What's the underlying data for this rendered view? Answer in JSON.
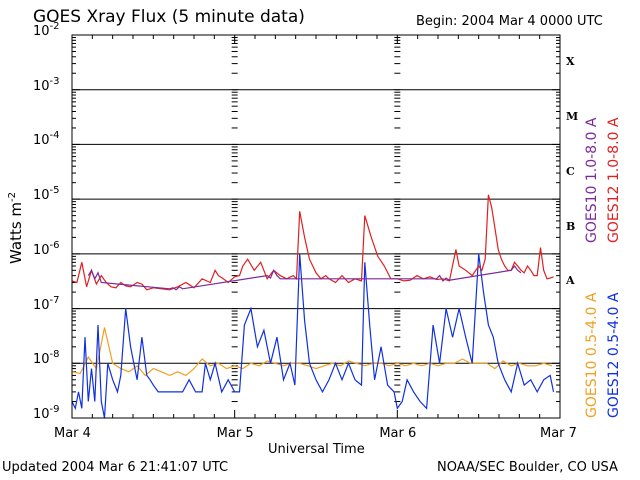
{
  "title": "GOES Xray Flux (5 minute data)",
  "begin": "Begin:  2004 Mar 4 0000 UTC",
  "updated": "Updated 2004 Mar  6 21:41:07 UTC",
  "credit": "NOAA/SEC Boulder, CO USA",
  "colors": {
    "goes10_long": "#7a2a9a",
    "goes12_long": "#e02020",
    "goes10_short": "#f0a020",
    "goes12_short": "#1030e0"
  },
  "legend": [
    {
      "label": "GOES10 1.0-8.0 A",
      "color": "#7a2a9a"
    },
    {
      "label": "GOES12 1.0-8.0 A",
      "color": "#e02020"
    },
    {
      "label": "GOES10 0.5-4.0 A",
      "color": "#f0a020"
    },
    {
      "label": "GOES12 0.5-4.0 A",
      "color": "#1030e0"
    }
  ],
  "chart_data": {
    "type": "line",
    "title": "GOES Xray Flux (5 minute data)",
    "xlabel": "Universal Time",
    "ylabel": "Watts m",
    "ylabel_sup": "-2",
    "yscale": "log",
    "ylim": [
      1e-09,
      0.01
    ],
    "xlim": [
      "2004-03-04",
      "2004-03-07"
    ],
    "grid": true,
    "y_ticks": [
      {
        "base": "10",
        "exp": "-9"
      },
      {
        "base": "10",
        "exp": "-8"
      },
      {
        "base": "10",
        "exp": "-7"
      },
      {
        "base": "10",
        "exp": "-6"
      },
      {
        "base": "10",
        "exp": "-5"
      },
      {
        "base": "10",
        "exp": "-4"
      },
      {
        "base": "10",
        "exp": "-3"
      },
      {
        "base": "10",
        "exp": "-2"
      }
    ],
    "x_ticks": [
      "Mar 4",
      "Mar 5",
      "Mar 6",
      "Mar 7"
    ],
    "flare_classes": [
      {
        "label": "A",
        "value": 1e-07
      },
      {
        "label": "B",
        "value": 1e-06
      },
      {
        "label": "C",
        "value": 1e-05
      },
      {
        "label": "M",
        "value": 0.0001
      },
      {
        "label": "X",
        "value": 0.001
      }
    ],
    "series": [
      {
        "name": "GOES12 1.0-8.0 A",
        "color": "#e02020",
        "x": [
          0,
          0.03,
          0.06,
          0.09,
          0.12,
          0.15,
          0.18,
          0.21,
          0.24,
          0.27,
          0.3,
          0.33,
          0.36,
          0.4,
          0.43,
          0.46,
          0.5,
          0.55,
          0.6,
          0.65,
          0.7,
          0.75,
          0.8,
          0.85,
          0.88,
          0.9,
          0.93,
          0.96,
          1.0,
          1.03,
          1.05,
          1.08,
          1.12,
          1.16,
          1.2,
          1.24,
          1.28,
          1.32,
          1.36,
          1.38,
          1.4,
          1.43,
          1.46,
          1.5,
          1.53,
          1.56,
          1.58,
          1.62,
          1.66,
          1.7,
          1.74,
          1.78,
          1.8,
          1.84,
          1.88,
          1.92,
          1.96,
          2.0,
          2.04,
          2.08,
          2.12,
          2.16,
          2.2,
          2.24,
          2.28,
          2.32,
          2.36,
          2.38,
          2.42,
          2.46,
          2.5,
          2.52,
          2.54,
          2.56,
          2.58,
          2.6,
          2.62,
          2.64,
          2.66,
          2.68,
          2.7,
          2.72,
          2.74,
          2.76,
          2.78,
          2.8,
          2.82,
          2.84,
          2.86,
          2.88,
          2.9,
          2.92,
          2.94,
          2.96
        ],
        "y": [
          3.2e-07,
          3e-07,
          7e-07,
          2.5e-07,
          5e-07,
          2.8e-07,
          4e-07,
          3e-07,
          2.5e-07,
          2.4e-07,
          3e-07,
          2.6e-07,
          2.5e-07,
          3e-07,
          2.8e-07,
          2.2e-07,
          2.4e-07,
          2.3e-07,
          2.2e-07,
          2.5e-07,
          3e-07,
          2.4e-07,
          3.5e-07,
          3e-07,
          5e-07,
          4e-07,
          3.5e-07,
          3e-07,
          3.8e-07,
          4e-07,
          6e-07,
          8e-07,
          5e-07,
          7e-07,
          3.5e-07,
          5e-07,
          4e-07,
          3.5e-07,
          4e-07,
          3.5e-07,
          6e-06,
          2e-06,
          8e-07,
          4.5e-07,
          3.5e-07,
          4e-07,
          3.5e-07,
          3e-07,
          4e-07,
          3e-07,
          3.5e-07,
          3.2e-07,
          5e-06,
          2e-06,
          9e-07,
          6e-07,
          3.5e-07,
          3.5e-07,
          3.2e-07,
          3.3e-07,
          4e-07,
          3.5e-07,
          3.8e-07,
          3.4e-07,
          3.5e-07,
          3.2e-07,
          1.2e-06,
          6e-07,
          5e-07,
          4e-07,
          6e-07,
          5e-07,
          8e-07,
          1.2e-05,
          7e-06,
          3e-06,
          1.2e-06,
          8e-07,
          6e-07,
          5e-07,
          5e-07,
          7e-07,
          6e-07,
          5e-07,
          4.5e-07,
          6e-07,
          5e-07,
          4e-07,
          4e-07,
          1.3e-06,
          5e-07,
          3.5e-07,
          3.6e-07,
          3.8e-07
        ]
      },
      {
        "name": "GOES10 1.0-8.0 A",
        "color": "#7a2a9a",
        "x": [
          0.1,
          0.12,
          0.14,
          0.16,
          0.18,
          0.6,
          0.62,
          0.64,
          0.66,
          0.68,
          1.2,
          1.22,
          1.24,
          1.26,
          1.28,
          2.24,
          2.26,
          2.28,
          2.3,
          2.32,
          2.7,
          2.72,
          2.74,
          2.76
        ],
        "y": [
          4e-07,
          5e-07,
          3.5e-07,
          4.5e-07,
          3e-07,
          2.3e-07,
          2.4e-07,
          2.2e-07,
          2.5e-07,
          2.3e-07,
          4e-07,
          3.6e-07,
          5e-07,
          4e-07,
          3.5e-07,
          3.5e-07,
          4e-07,
          3.2e-07,
          3.6e-07,
          3.3e-07,
          5e-07,
          6e-07,
          5e-07,
          4.5e-07
        ]
      },
      {
        "name": "GOES10 0.5-4.0 A",
        "color": "#f0a020",
        "x": [
          0,
          0.05,
          0.1,
          0.15,
          0.2,
          0.25,
          0.3,
          0.35,
          0.4,
          0.45,
          0.5,
          0.55,
          0.6,
          0.65,
          0.7,
          0.75,
          0.8,
          0.85,
          0.9,
          0.95,
          1.0,
          1.05,
          1.1,
          1.15,
          1.2,
          1.25,
          1.3,
          1.35,
          1.4,
          1.45,
          1.5,
          1.55,
          1.6,
          1.65,
          1.7,
          1.75,
          1.8,
          1.85,
          1.9,
          1.95,
          2.0,
          2.05,
          2.1,
          2.15,
          2.2,
          2.25,
          2.3,
          2.35,
          2.4,
          2.45,
          2.5,
          2.55,
          2.6,
          2.65,
          2.7,
          2.75,
          2.8,
          2.85,
          2.9,
          2.95
        ],
        "y": [
          7e-09,
          6.5e-09,
          1.3e-08,
          8e-09,
          4.5e-08,
          1e-08,
          8e-09,
          7e-09,
          9e-09,
          6e-09,
          8e-09,
          7e-09,
          6e-09,
          7e-09,
          6e-09,
          8e-09,
          1.2e-08,
          9e-09,
          1e-08,
          8e-09,
          9e-09,
          8e-09,
          1e-08,
          9e-09,
          1.1e-08,
          1e-08,
          9e-09,
          1e-08,
          1e-08,
          9e-09,
          8e-09,
          9e-09,
          1e-08,
          9e-09,
          1.1e-08,
          1e-08,
          9e-09,
          1e-08,
          1e-08,
          9e-09,
          1e-08,
          9e-09,
          1e-08,
          9e-09,
          1e-08,
          9e-09,
          1e-08,
          1e-08,
          1.2e-08,
          1e-08,
          1e-08,
          1e-08,
          8e-09,
          1.1e-08,
          9e-09,
          1e-08,
          9e-09,
          9e-09,
          1e-08,
          9e-09
        ]
      },
      {
        "name": "GOES12 0.5-4.0 A",
        "color": "#1030e0",
        "x": [
          0,
          0.02,
          0.04,
          0.06,
          0.08,
          0.1,
          0.12,
          0.14,
          0.16,
          0.18,
          0.2,
          0.22,
          0.25,
          0.28,
          0.3,
          0.33,
          0.36,
          0.38,
          0.4,
          0.43,
          0.46,
          0.48,
          0.5,
          0.53,
          0.56,
          0.6,
          0.64,
          0.68,
          0.72,
          0.76,
          0.8,
          0.82,
          0.85,
          0.88,
          0.92,
          0.96,
          1.0,
          1.03,
          1.06,
          1.1,
          1.14,
          1.18,
          1.22,
          1.26,
          1.3,
          1.34,
          1.37,
          1.4,
          1.43,
          1.46,
          1.5,
          1.54,
          1.58,
          1.62,
          1.66,
          1.7,
          1.74,
          1.78,
          1.8,
          1.83,
          1.86,
          1.9,
          1.94,
          1.98,
          2.0,
          2.03,
          2.06,
          2.1,
          2.14,
          2.18,
          2.22,
          2.26,
          2.3,
          2.34,
          2.38,
          2.42,
          2.46,
          2.5,
          2.53,
          2.56,
          2.59,
          2.62,
          2.66,
          2.7,
          2.74,
          2.78,
          2.82,
          2.86,
          2.9,
          2.94,
          2.96
        ],
        "y": [
          2e-09,
          1.5e-09,
          3e-09,
          1.5e-09,
          3e-08,
          2e-09,
          8e-09,
          2e-09,
          5e-08,
          2e-09,
          1e-09,
          1e-08,
          5e-09,
          3e-09,
          6e-09,
          1e-07,
          2e-08,
          1e-08,
          5e-09,
          3e-08,
          6e-09,
          5e-09,
          4e-09,
          3e-09,
          3e-09,
          3e-09,
          3e-09,
          3e-09,
          5e-09,
          3e-09,
          3e-09,
          1e-08,
          5e-09,
          1e-08,
          3e-09,
          5e-09,
          3e-09,
          3e-09,
          5e-08,
          1e-07,
          2e-08,
          4e-08,
          1e-08,
          3e-08,
          5e-09,
          1e-08,
          4e-09,
          1e-06,
          6e-08,
          1e-08,
          5e-09,
          3e-09,
          5e-09,
          1e-08,
          5e-09,
          1e-08,
          5e-09,
          4e-09,
          7e-07,
          5e-08,
          5e-09,
          2e-08,
          4e-09,
          3e-09,
          1.5e-09,
          2e-09,
          5e-09,
          3e-09,
          2e-09,
          1.5e-09,
          5e-08,
          1e-08,
          1e-07,
          3e-08,
          1e-07,
          3e-08,
          1e-08,
          1e-06,
          2e-07,
          5e-08,
          3e-08,
          1e-08,
          5e-09,
          3e-09,
          1e-08,
          4e-09,
          5e-09,
          3e-09,
          5e-09,
          6e-09,
          3e-09
        ]
      }
    ]
  }
}
